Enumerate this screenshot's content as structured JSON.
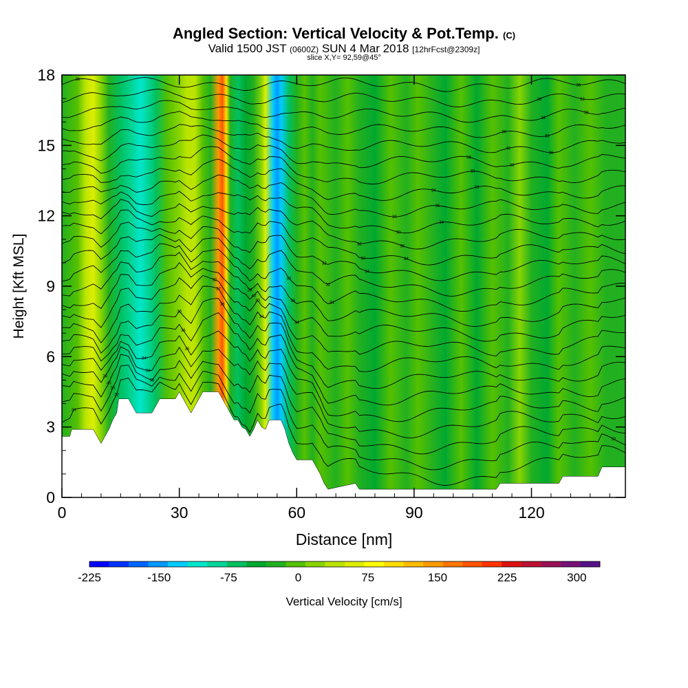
{
  "header": {
    "title_main": "Angled Section: Vertical Velocity & Pot.Temp.",
    "title_unit": "(C)",
    "valid_prefix": "Valid 1500 JST",
    "valid_z": "(0600Z)",
    "valid_date": "SUN 4 Mar 2018",
    "valid_fcst": "[12hrFcst@2309z]",
    "slice": "slice X,Y= 92,59@45°"
  },
  "chart_data": {
    "type": "heatmap",
    "xlabel": "Distance [nm]",
    "ylabel": "Height [Kft MSL]",
    "xlim": [
      0,
      144
    ],
    "ylim": [
      0,
      18
    ],
    "xticks": [
      0,
      30,
      60,
      90,
      120
    ],
    "yticks": [
      0,
      3,
      6,
      9,
      12,
      15,
      18
    ],
    "colorbar": {
      "label": "Vertical Velocity [cm/s]",
      "min": -225,
      "max": 325,
      "step": 25,
      "tick_values": [
        -225,
        -150,
        -75,
        0,
        75,
        150,
        225,
        300
      ],
      "colors": [
        "#0000ff",
        "#0033ff",
        "#0066ff",
        "#0099ff",
        "#00ccff",
        "#00e6cc",
        "#00d699",
        "#00c060",
        "#00a830",
        "#22b020",
        "#55c000",
        "#88d400",
        "#bbe400",
        "#ddee00",
        "#ffff00",
        "#ffdd00",
        "#ffbb00",
        "#ff9900",
        "#ff7700",
        "#ff5500",
        "#ff3300",
        "#dd1111",
        "#bb1133",
        "#991155",
        "#771177",
        "#551188"
      ]
    },
    "terrain_kft": [
      [
        0,
        2.6
      ],
      [
        2,
        2.6
      ],
      [
        2.5,
        2.9
      ],
      [
        8,
        2.9
      ],
      [
        9,
        2.6
      ],
      [
        10,
        2.3
      ],
      [
        11,
        2.6
      ],
      [
        12,
        2.9
      ],
      [
        13,
        3.3
      ],
      [
        14,
        3.6
      ],
      [
        14.5,
        4.2
      ],
      [
        17,
        4.2
      ],
      [
        18,
        3.9
      ],
      [
        19,
        3.6
      ],
      [
        20,
        3.6
      ],
      [
        23,
        3.6
      ],
      [
        24,
        3.9
      ],
      [
        25,
        4.2
      ],
      [
        29,
        4.2
      ],
      [
        30,
        4.5
      ],
      [
        31,
        4.2
      ],
      [
        32,
        3.9
      ],
      [
        33,
        3.6
      ],
      [
        34,
        3.9
      ],
      [
        35,
        4.2
      ],
      [
        36,
        4.5
      ],
      [
        40,
        4.5
      ],
      [
        41,
        4.2
      ],
      [
        42,
        3.9
      ],
      [
        43,
        3.6
      ],
      [
        44,
        3.3
      ],
      [
        45,
        3.3
      ],
      [
        46,
        3.0
      ],
      [
        47,
        2.9
      ],
      [
        48,
        2.6
      ],
      [
        49,
        2.9
      ],
      [
        50,
        3.3
      ],
      [
        51,
        3.0
      ],
      [
        52,
        2.9
      ],
      [
        53,
        3.3
      ],
      [
        56,
        3.3
      ],
      [
        57,
        2.9
      ],
      [
        58,
        2.3
      ],
      [
        59,
        1.9
      ],
      [
        60,
        1.6
      ],
      [
        64,
        1.6
      ],
      [
        65,
        1.3
      ],
      [
        66,
        1.0
      ],
      [
        67,
        0.6
      ],
      [
        68,
        0.35
      ],
      [
        75,
        0.6
      ],
      [
        76,
        0.35
      ],
      [
        111,
        0.35
      ],
      [
        112,
        0.6
      ],
      [
        127,
        0.6
      ],
      [
        128,
        0.9
      ],
      [
        137,
        0.9
      ],
      [
        138,
        1.3
      ],
      [
        144,
        1.3
      ]
    ],
    "columns": [
      {
        "x": 0,
        "w": 15
      },
      {
        "x": 4,
        "w": 30
      },
      {
        "x": 6,
        "w": 90
      },
      {
        "x": 8,
        "w": 110
      },
      {
        "x": 10,
        "w": 70
      },
      {
        "x": 12,
        "w": 20
      },
      {
        "x": 15,
        "w": -40
      },
      {
        "x": 18,
        "w": -70
      },
      {
        "x": 20,
        "w": -90
      },
      {
        "x": 22,
        "w": -70
      },
      {
        "x": 24,
        "w": -40
      },
      {
        "x": 27,
        "w": 25
      },
      {
        "x": 30,
        "w": 60
      },
      {
        "x": 32,
        "w": 90
      },
      {
        "x": 34,
        "w": 80
      },
      {
        "x": 36,
        "w": 40
      },
      {
        "x": 38,
        "w": 15
      },
      {
        "x": 40,
        "w": 220
      },
      {
        "x": 41,
        "w": 270
      },
      {
        "x": 42,
        "w": 160
      },
      {
        "x": 43,
        "w": 20
      },
      {
        "x": 45,
        "w": -40
      },
      {
        "x": 47,
        "w": -20
      },
      {
        "x": 49,
        "w": 20
      },
      {
        "x": 51,
        "w": 70
      },
      {
        "x": 52,
        "w": 120
      },
      {
        "x": 54,
        "w": -110
      },
      {
        "x": 55,
        "w": -150
      },
      {
        "x": 56,
        "w": -120
      },
      {
        "x": 58,
        "w": -40
      },
      {
        "x": 60,
        "w": 10
      },
      {
        "x": 62,
        "w": 30
      },
      {
        "x": 64,
        "w": 15
      },
      {
        "x": 66,
        "w": 35
      },
      {
        "x": 70,
        "w": 15
      },
      {
        "x": 73,
        "w": 40
      },
      {
        "x": 76,
        "w": 20
      },
      {
        "x": 80,
        "w": -5
      },
      {
        "x": 84,
        "w": 30
      },
      {
        "x": 88,
        "w": 5
      },
      {
        "x": 91,
        "w": 45
      },
      {
        "x": 95,
        "w": 15
      },
      {
        "x": 98,
        "w": -10
      },
      {
        "x": 102,
        "w": 25
      },
      {
        "x": 106,
        "w": -5
      },
      {
        "x": 110,
        "w": 35
      },
      {
        "x": 114,
        "w": 10
      },
      {
        "x": 117,
        "w": 50
      },
      {
        "x": 120,
        "w": 5
      },
      {
        "x": 124,
        "w": -5
      },
      {
        "x": 127,
        "w": 25
      },
      {
        "x": 131,
        "w": 5
      },
      {
        "x": 135,
        "w": 30
      },
      {
        "x": 139,
        "w": 10
      },
      {
        "x": 144,
        "w": 20
      }
    ],
    "contours": {
      "count": 26,
      "line_color": "#000000",
      "labels": [
        "32",
        "34",
        "34",
        "36",
        "33",
        "34",
        "34",
        "38",
        "35",
        "34",
        "33",
        "36",
        "36",
        "34",
        "38",
        "33",
        "30",
        "36",
        "33",
        "34",
        "36",
        "35",
        "32",
        "36",
        "32",
        "33",
        "34",
        "32",
        "30",
        "40",
        "40",
        "40",
        "30",
        "32",
        "34",
        "30",
        "34",
        "36",
        "35",
        "32",
        "36",
        "32",
        "30",
        "32",
        "30",
        "28",
        "28",
        "30",
        "28"
      ]
    }
  }
}
